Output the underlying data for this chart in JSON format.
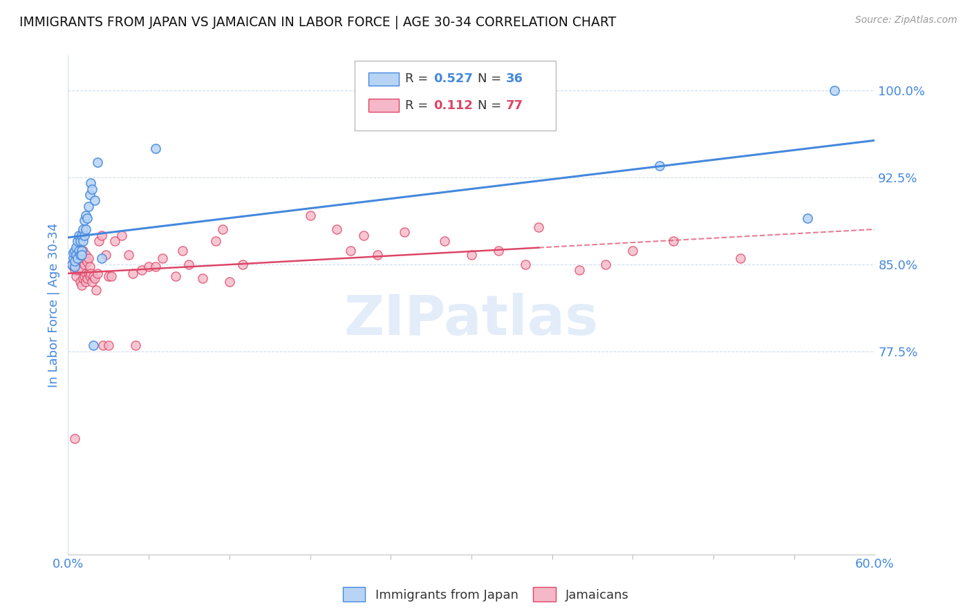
{
  "title": "IMMIGRANTS FROM JAPAN VS JAMAICAN IN LABOR FORCE | AGE 30-34 CORRELATION CHART",
  "source": "Source: ZipAtlas.com",
  "ylabel": "In Labor Force | Age 30-34",
  "xlim": [
    0.0,
    0.6
  ],
  "ylim": [
    0.6,
    1.03
  ],
  "yticks": [
    0.775,
    0.85,
    0.925,
    1.0
  ],
  "ytick_labels": [
    "77.5%",
    "85.0%",
    "92.5%",
    "100.0%"
  ],
  "xtick_labels": [
    "0.0%",
    "60.0%"
  ],
  "xticks": [
    0.0,
    0.6
  ],
  "legend_R1": "0.527",
  "legend_N1": "36",
  "legend_R2": "0.112",
  "legend_N2": "77",
  "color_japan": "#b8d4f5",
  "color_japan_line": "#4488dd",
  "color_jamaica": "#f5b8c8",
  "color_jamaica_line": "#dd4466",
  "watermark": "ZIPatlas",
  "background_color": "#ffffff",
  "title_color": "#222222",
  "axis_label_color": "#4488dd",
  "tick_color": "#4488dd",
  "japan_x": [
    0.003,
    0.004,
    0.004,
    0.005,
    0.005,
    0.005,
    0.006,
    0.006,
    0.007,
    0.007,
    0.008,
    0.008,
    0.009,
    0.009,
    0.01,
    0.01,
    0.01,
    0.011,
    0.011,
    0.012,
    0.012,
    0.013,
    0.013,
    0.014,
    0.015,
    0.016,
    0.017,
    0.018,
    0.019,
    0.02,
    0.022,
    0.025,
    0.065,
    0.44,
    0.55,
    0.57
  ],
  "japan_y": [
    0.85,
    0.855,
    0.86,
    0.848,
    0.853,
    0.862,
    0.858,
    0.865,
    0.855,
    0.87,
    0.862,
    0.875,
    0.858,
    0.87,
    0.862,
    0.875,
    0.858,
    0.87,
    0.88,
    0.875,
    0.888,
    0.88,
    0.892,
    0.89,
    0.9,
    0.91,
    0.92,
    0.915,
    0.78,
    0.905,
    0.938,
    0.855,
    0.95,
    0.935,
    0.89,
    1.0
  ],
  "jamaica_x": [
    0.003,
    0.004,
    0.005,
    0.005,
    0.006,
    0.006,
    0.007,
    0.007,
    0.008,
    0.008,
    0.009,
    0.009,
    0.009,
    0.01,
    0.01,
    0.01,
    0.011,
    0.011,
    0.011,
    0.012,
    0.012,
    0.012,
    0.013,
    0.013,
    0.013,
    0.014,
    0.014,
    0.015,
    0.015,
    0.016,
    0.016,
    0.017,
    0.018,
    0.019,
    0.02,
    0.021,
    0.022,
    0.023,
    0.025,
    0.026,
    0.028,
    0.03,
    0.03,
    0.032,
    0.035,
    0.04,
    0.045,
    0.048,
    0.05,
    0.055,
    0.06,
    0.065,
    0.07,
    0.08,
    0.085,
    0.09,
    0.1,
    0.11,
    0.115,
    0.12,
    0.13,
    0.18,
    0.2,
    0.21,
    0.22,
    0.23,
    0.25,
    0.28,
    0.3,
    0.32,
    0.34,
    0.35,
    0.38,
    0.4,
    0.42,
    0.45,
    0.5
  ],
  "jamaica_y": [
    0.85,
    0.848,
    0.7,
    0.845,
    0.84,
    0.855,
    0.845,
    0.852,
    0.848,
    0.862,
    0.835,
    0.848,
    0.855,
    0.832,
    0.845,
    0.858,
    0.838,
    0.852,
    0.862,
    0.84,
    0.85,
    0.855,
    0.835,
    0.842,
    0.858,
    0.838,
    0.852,
    0.842,
    0.855,
    0.84,
    0.848,
    0.842,
    0.835,
    0.84,
    0.838,
    0.828,
    0.842,
    0.87,
    0.875,
    0.78,
    0.858,
    0.84,
    0.78,
    0.84,
    0.87,
    0.875,
    0.858,
    0.842,
    0.78,
    0.845,
    0.848,
    0.848,
    0.855,
    0.84,
    0.862,
    0.85,
    0.838,
    0.87,
    0.88,
    0.835,
    0.85,
    0.892,
    0.88,
    0.862,
    0.875,
    0.858,
    0.878,
    0.87,
    0.858,
    0.862,
    0.85,
    0.882,
    0.845,
    0.85,
    0.862,
    0.87,
    0.855
  ]
}
